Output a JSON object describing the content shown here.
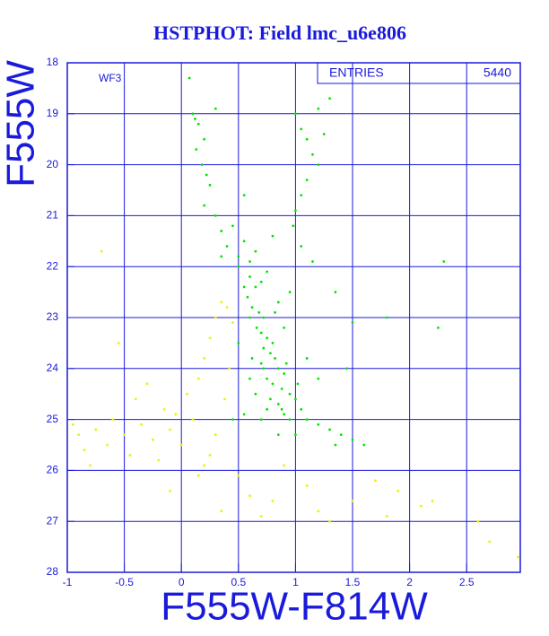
{
  "chart_data": {
    "type": "scatter",
    "title": "HSTPHOT: Field lmc_u6e806",
    "x_label": "F555W-F814W",
    "y_label": "F555W",
    "annotation": "WF3",
    "stats_label": "ENTRIES",
    "stats_value": 5440,
    "xlim": [
      -1,
      2.97
    ],
    "ylim": [
      28,
      18
    ],
    "xticks": [
      -1,
      -0.5,
      0,
      0.5,
      1,
      1.5,
      2,
      2.5
    ],
    "yticks": [
      18,
      19,
      20,
      21,
      22,
      23,
      24,
      25,
      26,
      27,
      28
    ],
    "grid": true,
    "series": [
      {
        "color": "#00e600",
        "x": [
          0.07,
          0.1,
          0.12,
          0.15,
          0.2,
          0.13,
          0.18,
          0.22,
          0.25,
          0.2,
          0.3,
          0.35,
          0.4,
          0.45,
          0.5,
          0.55,
          0.55,
          0.6,
          0.5,
          0.6,
          0.65,
          0.7,
          0.58,
          0.62,
          0.68,
          0.72,
          0.66,
          0.7,
          0.75,
          0.8,
          0.72,
          0.78,
          0.82,
          0.7,
          0.85,
          0.9,
          0.75,
          0.8,
          0.88,
          0.95,
          0.78,
          0.85,
          1.0,
          1.05,
          0.9,
          0.95,
          1.1,
          1.2,
          1.3,
          1.4,
          0.7,
          0.75,
          0.65,
          0.6,
          0.62,
          0.9,
          0.85,
          0.95,
          0.75,
          0.65,
          1.0,
          1.05,
          1.1,
          1.15,
          1.2,
          1.1,
          1.05,
          1.0,
          0.98,
          1.05,
          1.15,
          1.25,
          1.3,
          1.2,
          1.35,
          1.5,
          1.8,
          2.3,
          2.25,
          1.45,
          1.6,
          1.35,
          1.5,
          1.0,
          0.85,
          0.55,
          0.45,
          0.5,
          1.2,
          1.1,
          0.3,
          0.35,
          0.8,
          0.92,
          0.88,
          1.02,
          0.72,
          0.82,
          0.6,
          0.55
        ],
        "values": [
          18.3,
          19.0,
          19.1,
          19.2,
          19.5,
          19.7,
          20.0,
          20.2,
          20.4,
          20.8,
          21.0,
          21.3,
          21.6,
          21.2,
          21.8,
          20.6,
          21.5,
          21.9,
          22.0,
          22.2,
          22.4,
          22.3,
          22.6,
          22.8,
          22.9,
          23.0,
          23.2,
          23.3,
          23.4,
          23.5,
          23.6,
          23.7,
          23.8,
          23.9,
          24.0,
          24.1,
          24.2,
          24.3,
          24.4,
          24.5,
          24.6,
          24.7,
          24.6,
          24.8,
          24.9,
          25.0,
          25.0,
          25.1,
          25.2,
          25.3,
          25.0,
          24.8,
          24.5,
          24.2,
          23.8,
          23.2,
          22.7,
          22.5,
          22.1,
          21.7,
          19.0,
          19.3,
          19.5,
          19.8,
          20.0,
          20.3,
          20.6,
          20.9,
          21.2,
          21.6,
          21.9,
          19.4,
          18.7,
          18.9,
          22.5,
          23.1,
          23.0,
          21.9,
          23.2,
          24.0,
          25.5,
          25.5,
          25.4,
          25.3,
          25.3,
          24.9,
          25.0,
          23.5,
          24.2,
          23.8,
          18.9,
          21.8,
          21.4,
          23.9,
          24.8,
          24.3,
          24.0,
          22.9,
          23.0,
          22.4
        ]
      },
      {
        "color": "#f0f000",
        "x": [
          -0.9,
          -0.85,
          -0.8,
          -0.75,
          -0.7,
          -0.65,
          -0.6,
          -0.55,
          -0.5,
          -0.45,
          -0.4,
          -0.35,
          -0.3,
          -0.25,
          -0.2,
          -0.15,
          -0.1,
          -0.05,
          0.0,
          0.05,
          0.1,
          0.15,
          0.2,
          0.25,
          0.3,
          0.35,
          0.4,
          0.45,
          0.42,
          0.38,
          0.3,
          0.25,
          0.5,
          0.6,
          0.7,
          0.9,
          1.1,
          1.2,
          1.5,
          1.7,
          1.9,
          2.1,
          2.2,
          2.6,
          2.7,
          2.95,
          0.15,
          -0.1,
          1.3,
          0.8,
          1.8,
          0.35,
          -0.95,
          0.2
        ],
        "values": [
          25.3,
          25.6,
          25.9,
          25.2,
          21.7,
          25.5,
          25.0,
          23.5,
          25.3,
          25.7,
          24.6,
          25.1,
          24.3,
          25.4,
          25.8,
          24.8,
          25.2,
          24.9,
          25.5,
          24.5,
          25.0,
          24.2,
          23.8,
          23.4,
          23.0,
          22.7,
          22.8,
          23.1,
          24.0,
          24.6,
          25.3,
          25.7,
          26.1,
          26.5,
          26.9,
          25.9,
          26.3,
          26.8,
          26.6,
          26.2,
          26.4,
          26.7,
          26.6,
          27.0,
          27.4,
          27.7,
          26.1,
          26.4,
          27.0,
          26.6,
          26.9,
          26.8,
          25.1,
          25.9
        ]
      }
    ]
  }
}
